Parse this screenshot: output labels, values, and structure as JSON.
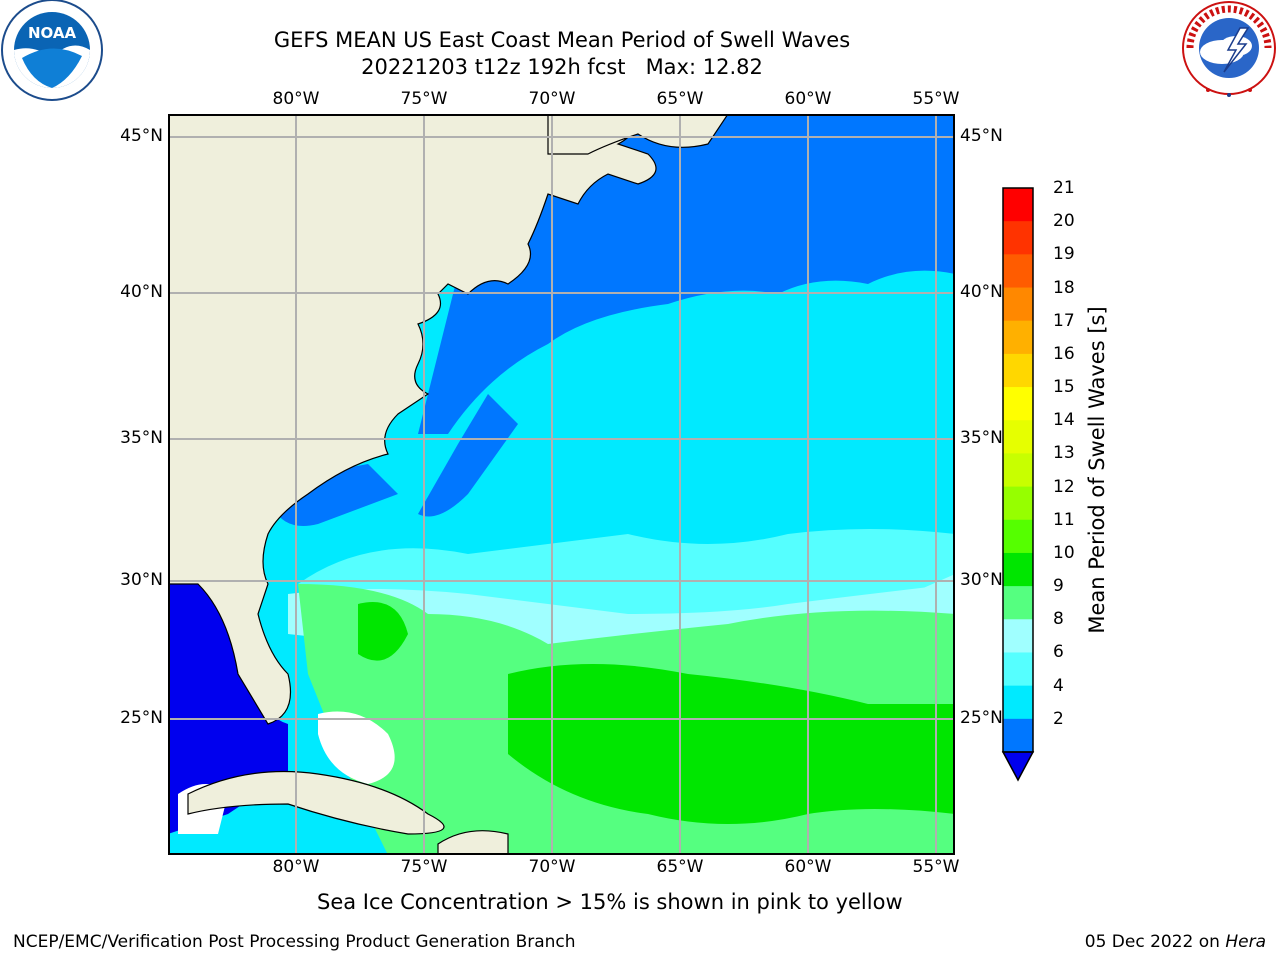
{
  "title": {
    "line1": "GEFS MEAN US East Coast Mean Period of Swell Waves",
    "line2": "20221203 t12z 192h fcst   Max: 12.82"
  },
  "logos": {
    "left": {
      "text": "NOAA",
      "icon": "noaa-logo"
    },
    "right": {
      "text": "NATIONAL WEATHER SERVICE",
      "icon": "nws-logo"
    }
  },
  "map": {
    "lon_ticks": [
      "80°W",
      "75°W",
      "70°W",
      "65°W",
      "60°W",
      "55°W"
    ],
    "lat_ticks": [
      "45°N",
      "40°N",
      "35°N",
      "30°N",
      "25°N"
    ],
    "extent": {
      "lon_min": -85,
      "lon_max": -54.2,
      "lat_min": 20.3,
      "lat_max": 46.1
    },
    "land_color": "#efefdc",
    "grid_color": "#b0b0b0"
  },
  "colorbar": {
    "title": "Mean Period of Swell Waves [s]",
    "labels": [
      "21",
      "20",
      "19",
      "18",
      "17",
      "16",
      "15",
      "14",
      "13",
      "12",
      "11",
      "10",
      "9",
      "8",
      "6",
      "4",
      "2"
    ],
    "colors": [
      "#ff0000",
      "#ff3300",
      "#ff5c00",
      "#ff8800",
      "#ffb000",
      "#ffd700",
      "#ffff00",
      "#e6ff00",
      "#c8ff00",
      "#96ff00",
      "#55ff00",
      "#00e600",
      "#55ff80",
      "#a0ffff",
      "#55ffff",
      "#00eaff",
      "#0077ff"
    ],
    "underflow_color": "#0000ee"
  },
  "note": "Sea Ice Concentration > 15% is shown in pink to yellow",
  "footer": {
    "left": "NCEP/EMC/Verification Post Processing Product Generation Branch",
    "right_date": "05 Dec 2022 on ",
    "right_machine": "Hera"
  }
}
